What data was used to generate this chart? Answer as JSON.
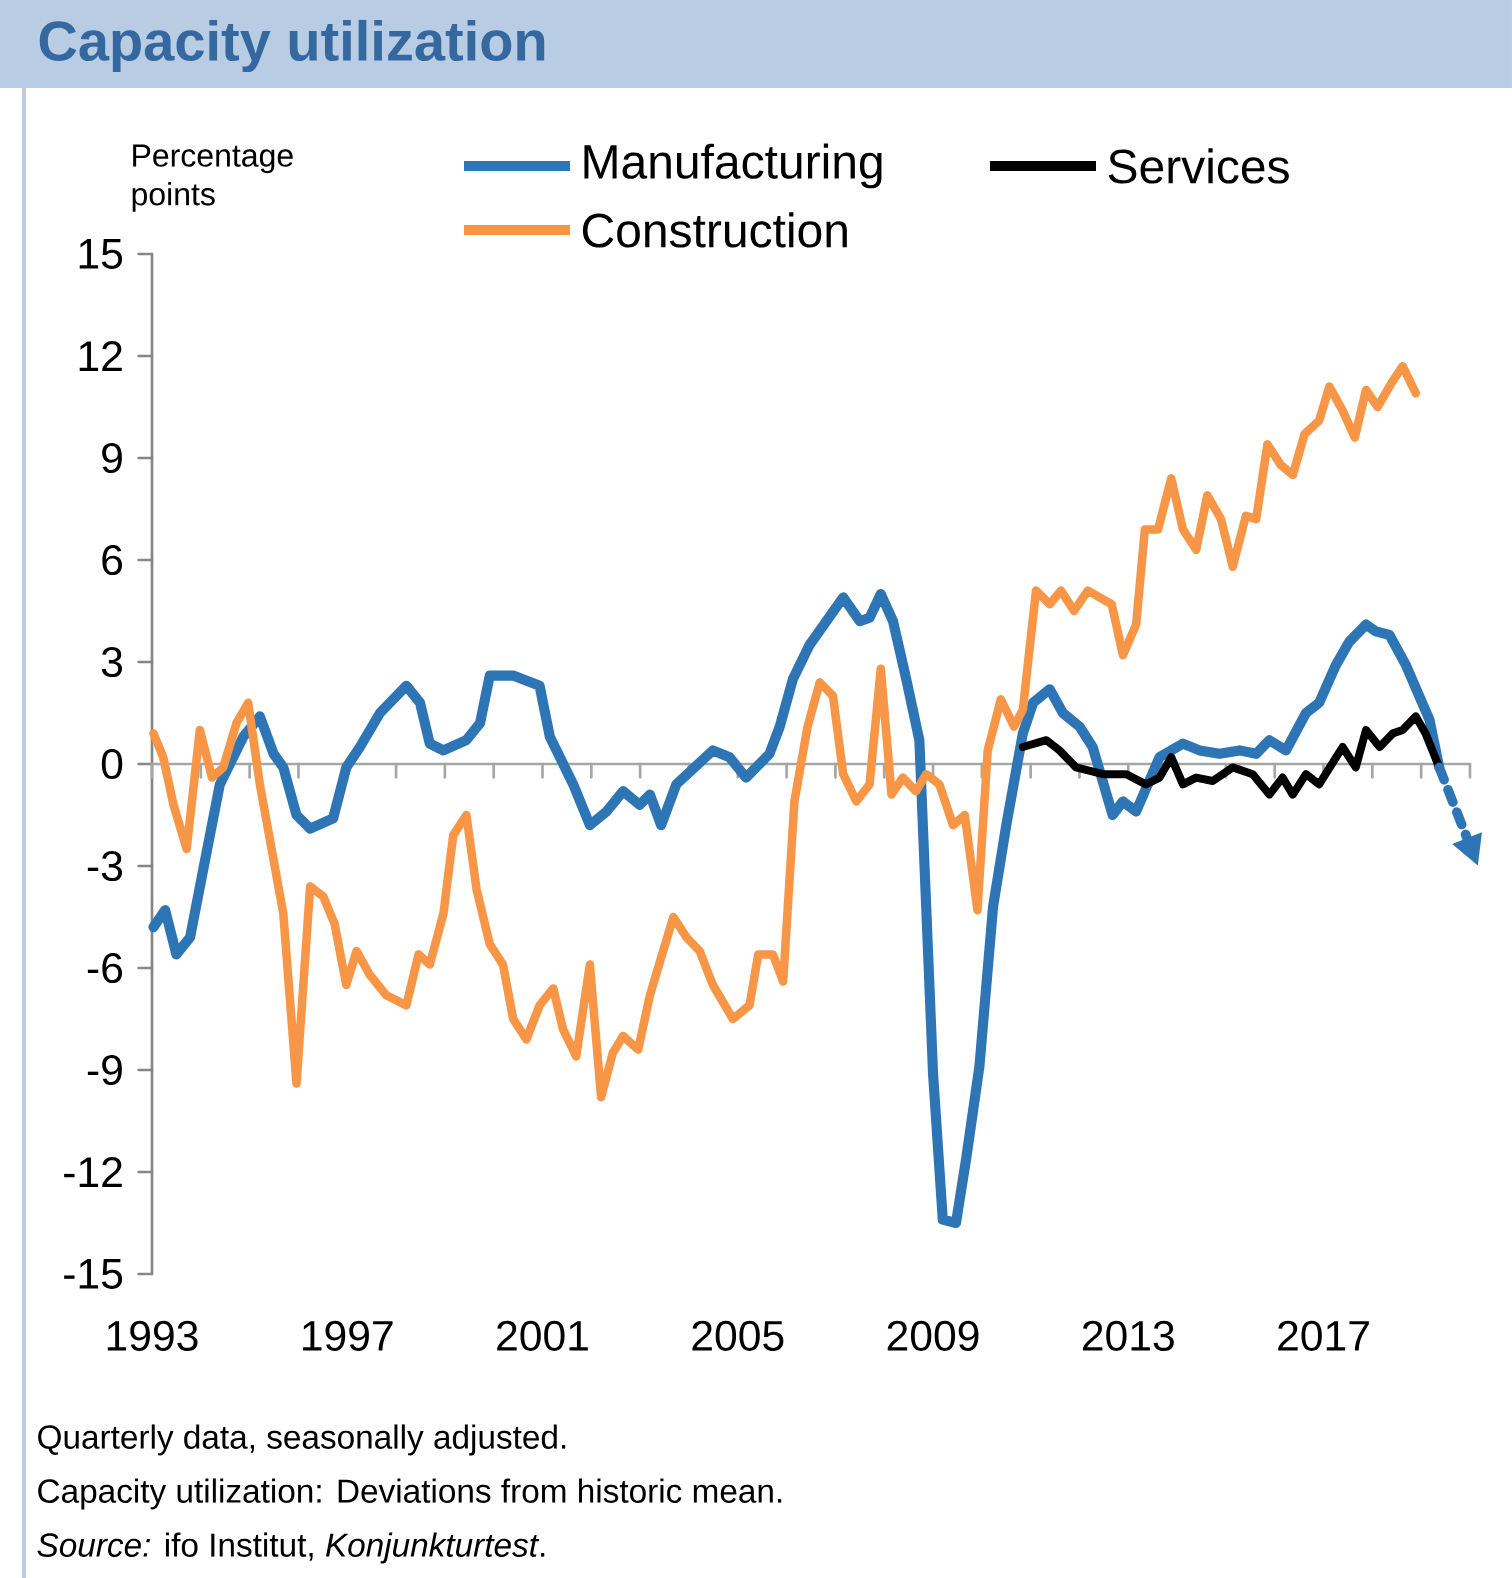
{
  "chart_data": {
    "type": "line",
    "title": "Capacity utilization",
    "ylabel": "Percentage points",
    "xlim": [
      1993,
      2020
    ],
    "ylim": [
      -15,
      15
    ],
    "xticks": [
      {
        "value": 1993,
        "label": "1993"
      },
      {
        "value": 1994,
        "label": null
      },
      {
        "value": 1995,
        "label": null
      },
      {
        "value": 1996,
        "label": null
      },
      {
        "value": 1997,
        "label": "1997"
      },
      {
        "value": 1998,
        "label": null
      },
      {
        "value": 1999,
        "label": null
      },
      {
        "value": 2000,
        "label": null
      },
      {
        "value": 2001,
        "label": "2001"
      },
      {
        "value": 2002,
        "label": null
      },
      {
        "value": 2003,
        "label": null
      },
      {
        "value": 2004,
        "label": null
      },
      {
        "value": 2005,
        "label": "2005"
      },
      {
        "value": 2006,
        "label": null
      },
      {
        "value": 2007,
        "label": null
      },
      {
        "value": 2008,
        "label": null
      },
      {
        "value": 2009,
        "label": "2009"
      },
      {
        "value": 2010,
        "label": null
      },
      {
        "value": 2011,
        "label": null
      },
      {
        "value": 2012,
        "label": null
      },
      {
        "value": 2013,
        "label": "2013"
      },
      {
        "value": 2014,
        "label": null
      },
      {
        "value": 2015,
        "label": null
      },
      {
        "value": 2016,
        "label": null
      },
      {
        "value": 2017,
        "label": "2017"
      },
      {
        "value": 2018,
        "label": null
      },
      {
        "value": 2019,
        "label": null
      },
      {
        "value": 2020,
        "label": null
      }
    ],
    "yticks": [
      -15,
      -12,
      -9,
      -6,
      -3,
      0,
      3,
      6,
      9,
      12,
      15
    ],
    "legend": "top",
    "grid": false,
    "ref_lines": [
      {
        "axis": "y",
        "value": 0,
        "color": "#a6a6a6"
      }
    ],
    "series": [
      {
        "name": "Manufacturing",
        "color": "#2e75b6",
        "x": [
          1993.03,
          1993.27,
          1993.5,
          1993.78,
          1994.05,
          1994.39,
          1994.87,
          1995.21,
          1995.49,
          1995.69,
          1995.96,
          1996.24,
          1996.71,
          1996.98,
          1997.26,
          1997.67,
          1998.21,
          1998.49,
          1998.69,
          1998.97,
          1999.44,
          1999.72,
          1999.92,
          2000.4,
          2000.94,
          2001.15,
          2001.63,
          2001.97,
          2002.31,
          2002.65,
          2002.99,
          2003.2,
          2003.43,
          2003.74,
          2004.49,
          2004.83,
          2005.17,
          2005.65,
          2005.86,
          2006.13,
          2006.47,
          2007.16,
          2007.5,
          2007.7,
          2007.93,
          2008.18,
          2008.45,
          2008.72,
          2008.86,
          2009.0,
          2009.2,
          2009.47,
          2009.68,
          2009.95,
          2010.23,
          2010.5,
          2010.84,
          2011.05,
          2011.39,
          2011.66,
          2012.0,
          2012.27,
          2012.68,
          2012.89,
          2013.16,
          2013.64,
          2014.12,
          2014.46,
          2014.87,
          2015.28,
          2015.62,
          2015.89,
          2016.23,
          2016.64,
          2016.91,
          2017.25,
          2017.53,
          2017.87,
          2018.07,
          2018.35,
          2018.69,
          2019.17,
          2019.37
        ],
        "values": [
          -4.8,
          -4.3,
          -5.6,
          -5.1,
          -3.1,
          -0.6,
          0.8,
          1.4,
          0.3,
          -0.1,
          -1.5,
          -1.9,
          -1.6,
          -0.1,
          0.5,
          1.5,
          2.3,
          1.8,
          0.6,
          0.4,
          0.7,
          1.2,
          2.6,
          2.6,
          2.3,
          0.8,
          -0.6,
          -1.8,
          -1.4,
          -0.8,
          -1.2,
          -0.9,
          -1.8,
          -0.6,
          0.4,
          0.2,
          -0.4,
          0.3,
          1.1,
          2.5,
          3.5,
          4.9,
          4.2,
          4.3,
          5.0,
          4.2,
          2.5,
          0.7,
          -4.2,
          -9.1,
          -13.4,
          -13.5,
          -11.6,
          -8.9,
          -4.2,
          -1.8,
          0.9,
          1.8,
          2.2,
          1.5,
          1.1,
          0.5,
          -1.5,
          -1.1,
          -1.4,
          0.2,
          0.6,
          0.4,
          0.3,
          0.4,
          0.3,
          0.7,
          0.4,
          1.5,
          1.8,
          2.9,
          3.6,
          4.1,
          3.9,
          3.8,
          2.9,
          1.3,
          -0.1
        ]
      },
      {
        "name": "Construction",
        "color": "#f79646",
        "x": [
          1993.03,
          1993.23,
          1993.44,
          1993.71,
          1993.98,
          1994.23,
          1994.46,
          1994.73,
          1994.97,
          1995.21,
          1995.69,
          1995.96,
          1996.24,
          1996.51,
          1996.74,
          1996.98,
          1997.19,
          1997.46,
          1997.8,
          1998.21,
          1998.46,
          1998.69,
          1998.97,
          1999.17,
          1999.44,
          1999.65,
          1999.92,
          2000.19,
          2000.4,
          2000.67,
          2000.94,
          2001.22,
          2001.42,
          2001.69,
          2001.97,
          2002.2,
          2002.44,
          2002.65,
          2002.96,
          2003.2,
          2003.68,
          2003.95,
          2004.22,
          2004.49,
          2004.9,
          2005.24,
          2005.42,
          2005.72,
          2005.93,
          2006.16,
          2006.43,
          2006.68,
          2006.95,
          2007.16,
          2007.43,
          2007.7,
          2007.93,
          2008.15,
          2008.38,
          2008.65,
          2008.86,
          2009.13,
          2009.41,
          2009.65,
          2009.91,
          2010.12,
          2010.39,
          2010.66,
          2010.84,
          2011.11,
          2011.39,
          2011.62,
          2011.89,
          2012.17,
          2012.66,
          2012.89,
          2013.16,
          2013.34,
          2013.61,
          2013.88,
          2014.12,
          2014.39,
          2014.62,
          2014.9,
          2015.14,
          2015.41,
          2015.62,
          2015.85,
          2016.12,
          2016.37,
          2016.61,
          2016.91,
          2017.12,
          2017.39,
          2017.64,
          2017.87,
          2018.11,
          2018.39,
          2018.62,
          2018.89
        ],
        "values": [
          0.9,
          0.2,
          -1.2,
          -2.5,
          1.0,
          -0.4,
          -0.1,
          1.2,
          1.8,
          -0.6,
          -4.4,
          -9.4,
          -3.6,
          -3.9,
          -4.7,
          -6.5,
          -5.5,
          -6.2,
          -6.8,
          -7.1,
          -5.6,
          -5.9,
          -4.4,
          -2.1,
          -1.5,
          -3.7,
          -5.3,
          -5.9,
          -7.5,
          -8.1,
          -7.1,
          -6.6,
          -7.8,
          -8.6,
          -5.9,
          -9.8,
          -8.5,
          -8.0,
          -8.4,
          -6.8,
          -4.5,
          -5.1,
          -5.5,
          -6.5,
          -7.5,
          -7.1,
          -5.6,
          -5.6,
          -6.4,
          -1.1,
          1.1,
          2.4,
          2.0,
          -0.3,
          -1.1,
          -0.6,
          2.8,
          -0.9,
          -0.4,
          -0.8,
          -0.3,
          -0.6,
          -1.8,
          -1.5,
          -4.3,
          0.4,
          1.9,
          1.1,
          1.6,
          5.1,
          4.7,
          5.1,
          4.5,
          5.1,
          4.7,
          3.2,
          4.1,
          6.9,
          6.9,
          8.4,
          6.9,
          6.3,
          7.9,
          7.2,
          5.8,
          7.3,
          7.2,
          9.4,
          8.8,
          8.5,
          9.7,
          10.1,
          11.1,
          10.4,
          9.6,
          11.0,
          10.5,
          11.2,
          11.7,
          10.9
        ]
      },
      {
        "name": "Services",
        "color": "#000000",
        "x": [
          2010.84,
          2011.32,
          2011.59,
          2011.93,
          2012.48,
          2012.96,
          2013.36,
          2013.64,
          2013.88,
          2014.12,
          2014.39,
          2014.73,
          2015.14,
          2015.55,
          2015.89,
          2016.16,
          2016.37,
          2016.64,
          2016.91,
          2017.39,
          2017.66,
          2017.87,
          2018.15,
          2018.42,
          2018.62,
          2018.89,
          2019.09,
          2019.37
        ],
        "values": [
          0.5,
          0.7,
          0.4,
          -0.1,
          -0.3,
          -0.3,
          -0.6,
          -0.4,
          0.2,
          -0.6,
          -0.4,
          -0.5,
          -0.1,
          -0.3,
          -0.9,
          -0.4,
          -0.9,
          -0.3,
          -0.6,
          0.5,
          -0.1,
          1.0,
          0.5,
          0.9,
          1.0,
          1.4,
          0.9,
          -0.1
        ]
      },
      {
        "color": "#2e75b6",
        "line_style": "dashed",
        "x": [
          2019.37,
          2020.0
        ],
        "values": [
          -0.1,
          -2.4
        ]
      }
    ],
    "annotations": [
      "Quarterly data, seasonally adjusted.",
      "Capacity utilization: Deviations from historic mean.",
      "*Source:* ifo Institut, *Konjunkturtest*."
    ]
  }
}
